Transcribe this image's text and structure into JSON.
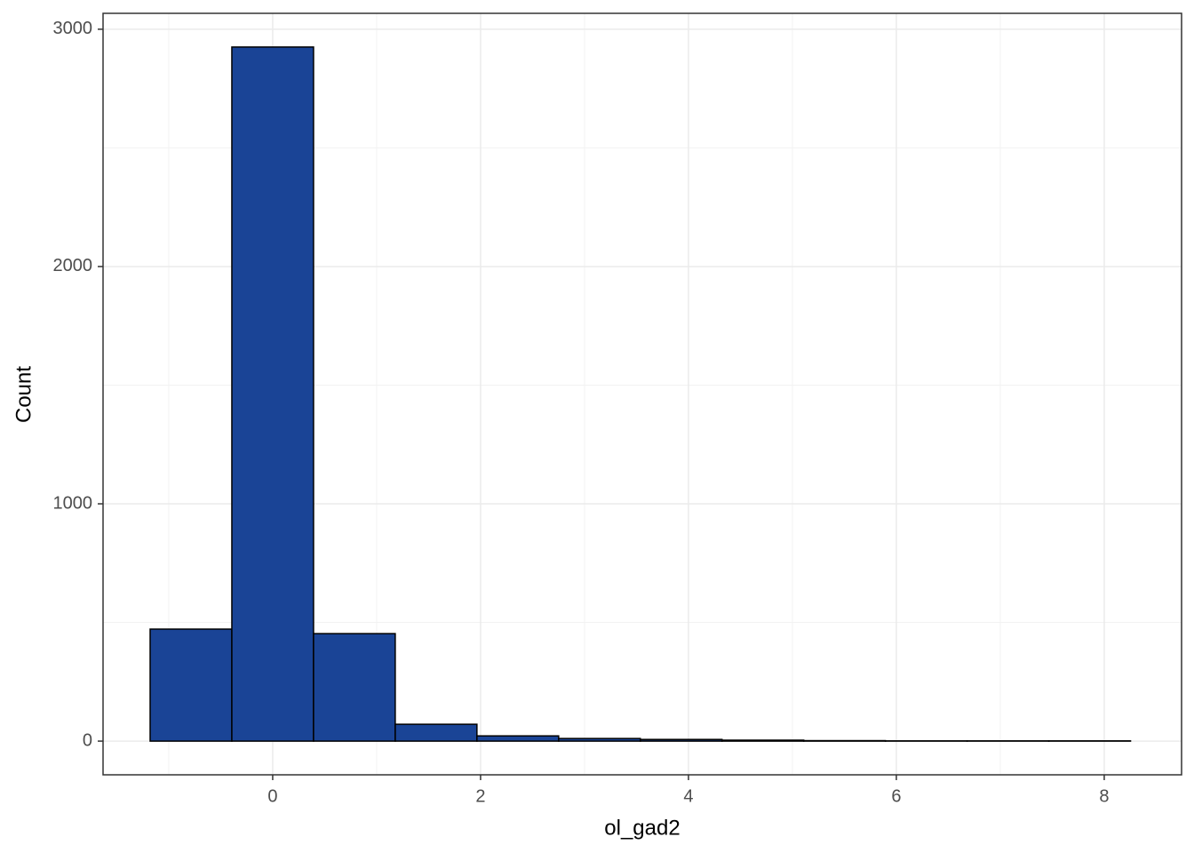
{
  "chart_data": {
    "type": "histogram",
    "x_label": "ol_gad2",
    "y_label": "Count",
    "bins": [
      -1.179,
      -0.393,
      0.393,
      1.179,
      1.965,
      2.751,
      3.537,
      4.323,
      5.109,
      5.895,
      6.681,
      7.467,
      8.253
    ],
    "values": [
      472,
      2925,
      453,
      71,
      22,
      11,
      7,
      4,
      2,
      1,
      1,
      1
    ],
    "color": "#1a4496",
    "edge_color": "#000000",
    "xlim": [
      -1.632,
      8.744
    ],
    "ylim": [
      -142,
      3067
    ],
    "xticks": [
      0,
      2,
      4,
      6,
      8
    ],
    "yticks": [
      0,
      1000,
      2000,
      3000
    ],
    "x_minor_ticks": [
      -1,
      1,
      3,
      5,
      7
    ],
    "y_minor_ticks": [
      500,
      1500,
      2500
    ],
    "grid": true
  }
}
